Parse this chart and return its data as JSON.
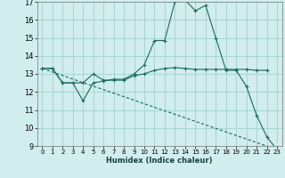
{
  "title": "",
  "xlabel": "Humidex (Indice chaleur)",
  "xlim": [
    -0.5,
    23.5
  ],
  "ylim": [
    9,
    17
  ],
  "yticks": [
    9,
    10,
    11,
    12,
    13,
    14,
    15,
    16,
    17
  ],
  "xticks": [
    0,
    1,
    2,
    3,
    4,
    5,
    6,
    7,
    8,
    9,
    10,
    11,
    12,
    13,
    14,
    15,
    16,
    17,
    18,
    19,
    20,
    21,
    22,
    23
  ],
  "bg_color": "#d1eded",
  "grid_color": "#a8d4d4",
  "line_color": "#1a6b5a",
  "series": [
    {
      "x": [
        0,
        1,
        2,
        3,
        4,
        5,
        6,
        7,
        8,
        9,
        10,
        11,
        12,
        13,
        14,
        15,
        16,
        17,
        18,
        19,
        20,
        21,
        22
      ],
      "y": [
        13.3,
        13.3,
        12.5,
        12.5,
        12.5,
        13.0,
        12.65,
        12.65,
        12.65,
        12.9,
        13.0,
        13.2,
        13.3,
        13.35,
        13.3,
        13.25,
        13.25,
        13.25,
        13.25,
        13.25,
        13.25,
        13.2,
        13.2
      ],
      "marker": "+",
      "linestyle": "-"
    },
    {
      "x": [
        0,
        1,
        2,
        3,
        4,
        5,
        6,
        7,
        8,
        9,
        10,
        11,
        12,
        13,
        14,
        15,
        16,
        17,
        18,
        19,
        20,
        21,
        22,
        23
      ],
      "y": [
        13.3,
        13.3,
        12.5,
        12.5,
        11.5,
        12.5,
        12.6,
        12.7,
        12.7,
        13.0,
        13.5,
        14.85,
        14.85,
        17.0,
        17.1,
        16.5,
        16.8,
        15.0,
        13.2,
        13.2,
        12.3,
        10.7,
        9.5,
        8.8
      ],
      "marker": "+",
      "linestyle": "-"
    },
    {
      "x": [
        0,
        23
      ],
      "y": [
        13.3,
        8.8
      ],
      "marker": null,
      "linestyle": "--"
    }
  ]
}
